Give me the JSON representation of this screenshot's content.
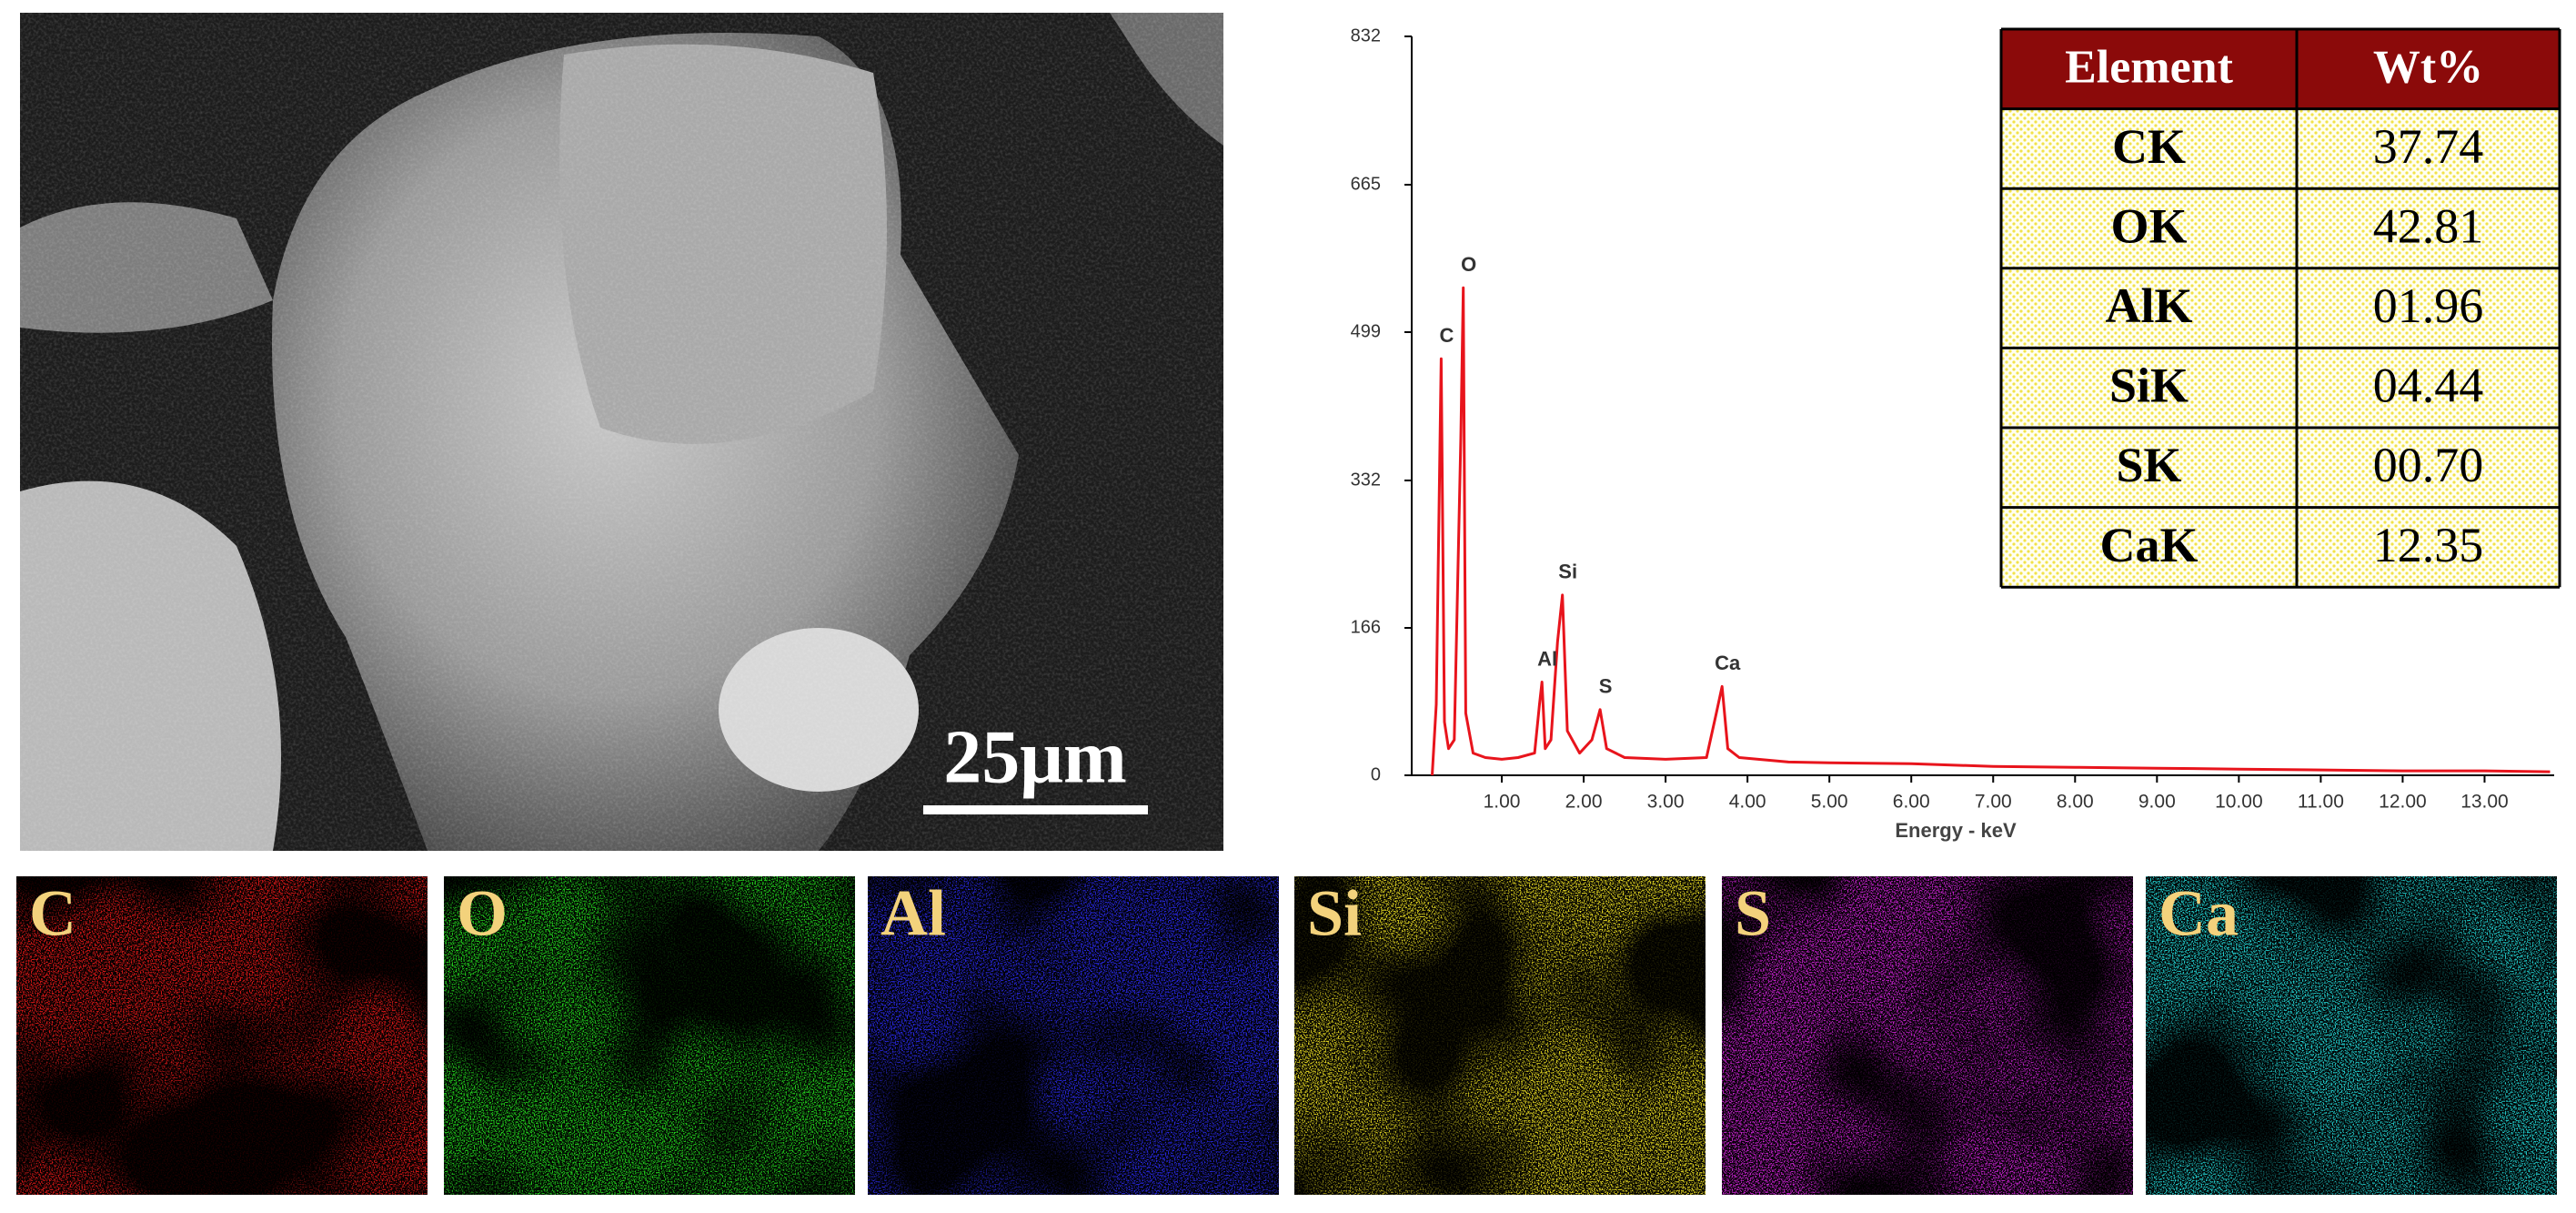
{
  "sem_image": {
    "scale_bar": "25μm"
  },
  "chart_data": {
    "type": "line",
    "x_label": "Energy - keV",
    "x": [
      0.15,
      0.2,
      0.26,
      0.3,
      0.35,
      0.42,
      0.5,
      0.53,
      0.56,
      0.65,
      0.8,
      1.0,
      1.2,
      1.4,
      1.46,
      1.49,
      1.53,
      1.6,
      1.68,
      1.74,
      1.8,
      1.95,
      2.1,
      2.2,
      2.28,
      2.5,
      3.0,
      3.5,
      3.62,
      3.69,
      3.76,
      3.9,
      4.5,
      5.0,
      6.0,
      7.0,
      8.0,
      9.0,
      10.0,
      11.0,
      12.0,
      13.0,
      13.8
    ],
    "values": [
      0,
      80,
      469,
      60,
      30,
      40,
      380,
      549,
      70,
      25,
      20,
      18,
      20,
      25,
      80,
      105,
      30,
      40,
      150,
      203,
      50,
      25,
      40,
      74,
      30,
      20,
      18,
      20,
      70,
      100,
      30,
      20,
      15,
      14,
      13,
      10,
      9,
      8,
      7,
      6,
      5,
      5,
      4
    ],
    "color": "#e8141c",
    "annotations": [
      "C",
      "O",
      "Al",
      "Si",
      "S",
      "Ca"
    ],
    "xlim": [
      -0.1,
      13.85
    ],
    "ylim": [
      0,
      832
    ],
    "xticks": [
      {
        "value": 1,
        "label": "1.00"
      },
      {
        "value": 2,
        "label": "2.00"
      },
      {
        "value": 3,
        "label": "3.00"
      },
      {
        "value": 4,
        "label": "4.00"
      },
      {
        "value": 5,
        "label": "5.00"
      },
      {
        "value": 6,
        "label": "6.00"
      },
      {
        "value": 7,
        "label": "7.00"
      },
      {
        "value": 8,
        "label": "8.00"
      },
      {
        "value": 9,
        "label": "9.00"
      },
      {
        "value": 10,
        "label": "10.00"
      },
      {
        "value": 11,
        "label": "11.00"
      },
      {
        "value": 12,
        "label": "12.00"
      },
      {
        "value": 13,
        "label": "13.00"
      }
    ],
    "yticks": [
      0,
      166,
      332,
      499,
      665,
      832
    ]
  },
  "table": {
    "header": [
      "Element",
      "Wt%"
    ],
    "rows": [
      [
        "CK",
        "37.74"
      ],
      [
        "OK",
        "42.81"
      ],
      [
        "AlK",
        "01.96"
      ],
      [
        "SiK",
        "04.44"
      ],
      [
        "SK",
        "00.70"
      ],
      [
        "CaK",
        "12.35"
      ]
    ]
  },
  "maps": [
    {
      "label": "C",
      "color": "#d01818"
    },
    {
      "label": "O",
      "color": "#22c81e"
    },
    {
      "label": "Al",
      "color": "#2828d8"
    },
    {
      "label": "Si",
      "color": "#d8cc20"
    },
    {
      "label": "S",
      "color": "#c020c8"
    },
    {
      "label": "Ca",
      "color": "#20c8c8"
    }
  ]
}
